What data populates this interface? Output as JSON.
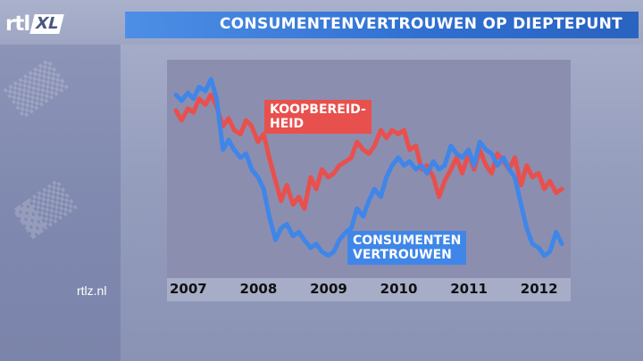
{
  "header": {
    "title": "CONSUMENTENVERTROUWEN OP DIEPTEPUNT",
    "logo_rtl": "rtl",
    "logo_xl": "XL"
  },
  "footer": {
    "site": "rtlz.nl"
  },
  "colors": {
    "red_series": "#e8504d",
    "blue_series": "#3f86e8",
    "title_bar": "#2f6fd0"
  },
  "chart_data": {
    "type": "line",
    "title": "CONSUMENTENVERTROUWEN OP DIEPTEPUNT",
    "xlabel": "",
    "ylabel": "",
    "x_tick_labels": [
      "2007",
      "2008",
      "2009",
      "2010",
      "2011",
      "2012"
    ],
    "x_ticks": [
      2007,
      2008,
      2009,
      2010,
      2011,
      2012
    ],
    "xlim": [
      2007.0,
      2012.55
    ],
    "ylim": [
      0,
      100
    ],
    "grid": false,
    "series_labels": {
      "red": "KOOPBEREID-\nHEID",
      "blue": "CONSUMENTEN\nVERTROUWEN"
    },
    "series": [
      {
        "name": "KOOPBEREID-\nHEID",
        "color": "#e8504d",
        "x": [
          2007.0,
          2007.08,
          2007.17,
          2007.25,
          2007.33,
          2007.42,
          2007.5,
          2007.58,
          2007.67,
          2007.75,
          2007.83,
          2007.92,
          2008.0,
          2008.08,
          2008.17,
          2008.25,
          2008.33,
          2008.42,
          2008.5,
          2008.58,
          2008.67,
          2008.75,
          2008.83,
          2008.92,
          2009.0,
          2009.08,
          2009.17,
          2009.25,
          2009.33,
          2009.42,
          2009.5,
          2009.58,
          2009.67,
          2009.75,
          2009.83,
          2009.92,
          2010.0,
          2010.08,
          2010.17,
          2010.25,
          2010.33,
          2010.42,
          2010.5,
          2010.58,
          2010.67,
          2010.75,
          2010.83,
          2010.92,
          2011.0,
          2011.08,
          2011.17,
          2011.25,
          2011.33,
          2011.42,
          2011.5,
          2011.58,
          2011.67,
          2011.75,
          2011.83,
          2011.92,
          2012.0,
          2012.08,
          2012.17,
          2012.25,
          2012.33,
          2012.42,
          2012.5
        ],
        "values": [
          80,
          75,
          81,
          79,
          86,
          83,
          88,
          82,
          72,
          76,
          70,
          68,
          75,
          72,
          64,
          68,
          56,
          44,
          34,
          42,
          32,
          36,
          30,
          46,
          40,
          50,
          46,
          48,
          52,
          54,
          56,
          64,
          60,
          58,
          62,
          70,
          66,
          70,
          68,
          70,
          60,
          62,
          50,
          52,
          46,
          36,
          44,
          50,
          56,
          48,
          58,
          50,
          60,
          52,
          48,
          58,
          54,
          50,
          56,
          42,
          52,
          46,
          48,
          40,
          44,
          38,
          40
        ]
      },
      {
        "name": "CONSUMENTEN\nVERTROUWEN",
        "color": "#3f86e8",
        "x": [
          2007.0,
          2007.08,
          2007.17,
          2007.25,
          2007.33,
          2007.42,
          2007.5,
          2007.58,
          2007.67,
          2007.75,
          2007.83,
          2007.92,
          2008.0,
          2008.08,
          2008.17,
          2008.25,
          2008.33,
          2008.42,
          2008.5,
          2008.58,
          2008.67,
          2008.75,
          2008.83,
          2008.92,
          2009.0,
          2009.08,
          2009.17,
          2009.25,
          2009.33,
          2009.42,
          2009.5,
          2009.58,
          2009.67,
          2009.75,
          2009.83,
          2009.92,
          2010.0,
          2010.08,
          2010.17,
          2010.25,
          2010.33,
          2010.42,
          2010.5,
          2010.58,
          2010.67,
          2010.75,
          2010.83,
          2010.92,
          2011.0,
          2011.08,
          2011.17,
          2011.25,
          2011.33,
          2011.42,
          2011.5,
          2011.58,
          2011.67,
          2011.75,
          2011.83,
          2011.92,
          2012.0,
          2012.08,
          2012.17,
          2012.25,
          2012.33,
          2012.42,
          2012.5
        ],
        "values": [
          88,
          85,
          89,
          86,
          92,
          90,
          96,
          86,
          60,
          65,
          60,
          56,
          58,
          50,
          46,
          40,
          26,
          14,
          20,
          22,
          16,
          18,
          14,
          10,
          12,
          8,
          6,
          8,
          14,
          18,
          20,
          30,
          26,
          34,
          40,
          36,
          46,
          52,
          56,
          52,
          54,
          50,
          52,
          48,
          54,
          50,
          52,
          62,
          58,
          56,
          60,
          52,
          64,
          60,
          58,
          52,
          56,
          50,
          46,
          32,
          20,
          12,
          10,
          6,
          8,
          18,
          12
        ]
      }
    ]
  }
}
